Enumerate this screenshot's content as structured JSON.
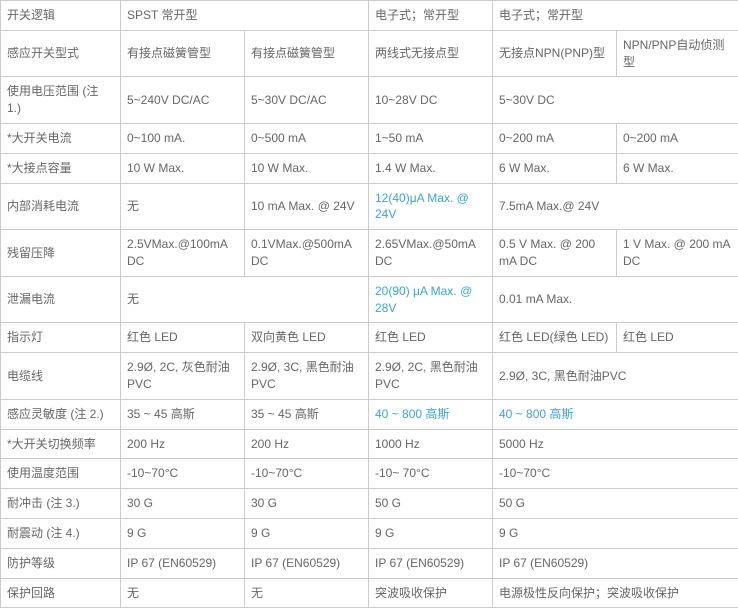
{
  "columns": 6,
  "rows": [
    {
      "cells": [
        {
          "text": "开关逻辑"
        },
        {
          "text": "SPST 常开型",
          "colspan": 2
        },
        {
          "text": "电子式；常开型"
        },
        {
          "text": "电子式；常开型",
          "colspan": 2
        }
      ]
    },
    {
      "cells": [
        {
          "text": "感应开关型式"
        },
        {
          "text": "有接点磁簧管型"
        },
        {
          "text": "有接点磁簧管型"
        },
        {
          "text": "两线式无接点型"
        },
        {
          "text": "无接点NPN(PNP)型"
        },
        {
          "text": "NPN/PNP自动侦测型"
        }
      ]
    },
    {
      "cells": [
        {
          "text": "使用电压范围 (注 1.)"
        },
        {
          "text": "5~240V DC/AC"
        },
        {
          "text": "5~30V DC/AC"
        },
        {
          "text": "10~28V DC"
        },
        {
          "text": "5~30V DC",
          "colspan": 2
        }
      ]
    },
    {
      "cells": [
        {
          "text": "*大开关电流"
        },
        {
          "text": "0~100 mA."
        },
        {
          "text": "0~500 mA"
        },
        {
          "text": "1~50 mA"
        },
        {
          "text": "0~200 mA"
        },
        {
          "text": "0~200 mA"
        }
      ]
    },
    {
      "cells": [
        {
          "text": "*大接点容量"
        },
        {
          "text": "10 W Max."
        },
        {
          "text": "10 W Max."
        },
        {
          "text": "1.4 W Max."
        },
        {
          "text": "6 W Max."
        },
        {
          "text": "6 W Max."
        }
      ]
    },
    {
      "cells": [
        {
          "text": "内部消耗电流"
        },
        {
          "text": "无"
        },
        {
          "text": "10 mA Max. @ 24V"
        },
        {
          "text": "12(40)μA Max. @ 24V",
          "highlight": true
        },
        {
          "text": "7.5mA Max.@ 24V",
          "colspan": 2
        }
      ]
    },
    {
      "cells": [
        {
          "text": "残留压降"
        },
        {
          "text": "2.5VMax.@100mA DC"
        },
        {
          "text": "0.1VMax.@500mA DC"
        },
        {
          "text": "2.65VMax.@50mA DC"
        },
        {
          "text": "0.5 V Max. @ 200 mA DC"
        },
        {
          "text": "1 V Max. @ 200 mA DC"
        }
      ]
    },
    {
      "cells": [
        {
          "text": "泄漏电流"
        },
        {
          "text": "无",
          "colspan": 2
        },
        {
          "text": "20(90) μA Max. @ 28V",
          "highlight": true
        },
        {
          "text": "0.01 mA Max.",
          "colspan": 2
        }
      ]
    },
    {
      "cells": [
        {
          "text": "指示灯"
        },
        {
          "text": "红色  LED"
        },
        {
          "text": "双向黄色  LED"
        },
        {
          "text": "红色  LED"
        },
        {
          "text": "红色  LED(绿色  LED)"
        },
        {
          "text": "红色  LED"
        }
      ]
    },
    {
      "cells": [
        {
          "text": "电缆线"
        },
        {
          "text": "2.9Ø, 2C, 灰色耐油PVC"
        },
        {
          "text": "2.9Ø, 3C, 黑色耐油PVC"
        },
        {
          "text": "2.9Ø, 2C, 黑色耐油PVC"
        },
        {
          "text": "2.9Ø, 3C, 黑色耐油PVC",
          "colspan": 2
        }
      ]
    },
    {
      "cells": [
        {
          "text": "感应灵敏度 (注 2.)"
        },
        {
          "text": "35 ~ 45 高斯"
        },
        {
          "text": "35 ~ 45 高斯"
        },
        {
          "text": "40 ~ 800 高斯",
          "highlight": true
        },
        {
          "text": "40 ~ 800 高斯",
          "highlight": true,
          "colspan": 2
        }
      ]
    },
    {
      "cells": [
        {
          "text": "*大开关切换频率"
        },
        {
          "text": "200 Hz"
        },
        {
          "text": "200 Hz"
        },
        {
          "text": "1000 Hz"
        },
        {
          "text": "5000 Hz",
          "colspan": 2
        }
      ]
    },
    {
      "cells": [
        {
          "text": "使用温度范围"
        },
        {
          "text": "-10~70°C"
        },
        {
          "text": "-10~70°C"
        },
        {
          "text": "-10~ 70°C"
        },
        {
          "text": "-10~70°C",
          "colspan": 2
        }
      ]
    },
    {
      "cells": [
        {
          "text": "耐冲击 (注 3.)"
        },
        {
          "text": "30 G"
        },
        {
          "text": "30 G"
        },
        {
          "text": "50 G"
        },
        {
          "text": "50 G",
          "colspan": 2
        }
      ]
    },
    {
      "cells": [
        {
          "text": "耐震动 (注 4.)"
        },
        {
          "text": "9 G"
        },
        {
          "text": "9 G"
        },
        {
          "text": "9 G"
        },
        {
          "text": "9 G",
          "colspan": 2
        }
      ]
    },
    {
      "cells": [
        {
          "text": "防护等级"
        },
        {
          "text": "IP 67 (EN60529)"
        },
        {
          "text": "IP 67 (EN60529)"
        },
        {
          "text": "IP 67 (EN60529)"
        },
        {
          "text": "IP 67 (EN60529)",
          "colspan": 2
        }
      ]
    },
    {
      "cells": [
        {
          "text": "保护回路"
        },
        {
          "text": "无"
        },
        {
          "text": "无"
        },
        {
          "text": "突波吸收保护"
        },
        {
          "text": "电源极性反向保护；突波吸收保护",
          "colspan": 2
        }
      ]
    }
  ]
}
